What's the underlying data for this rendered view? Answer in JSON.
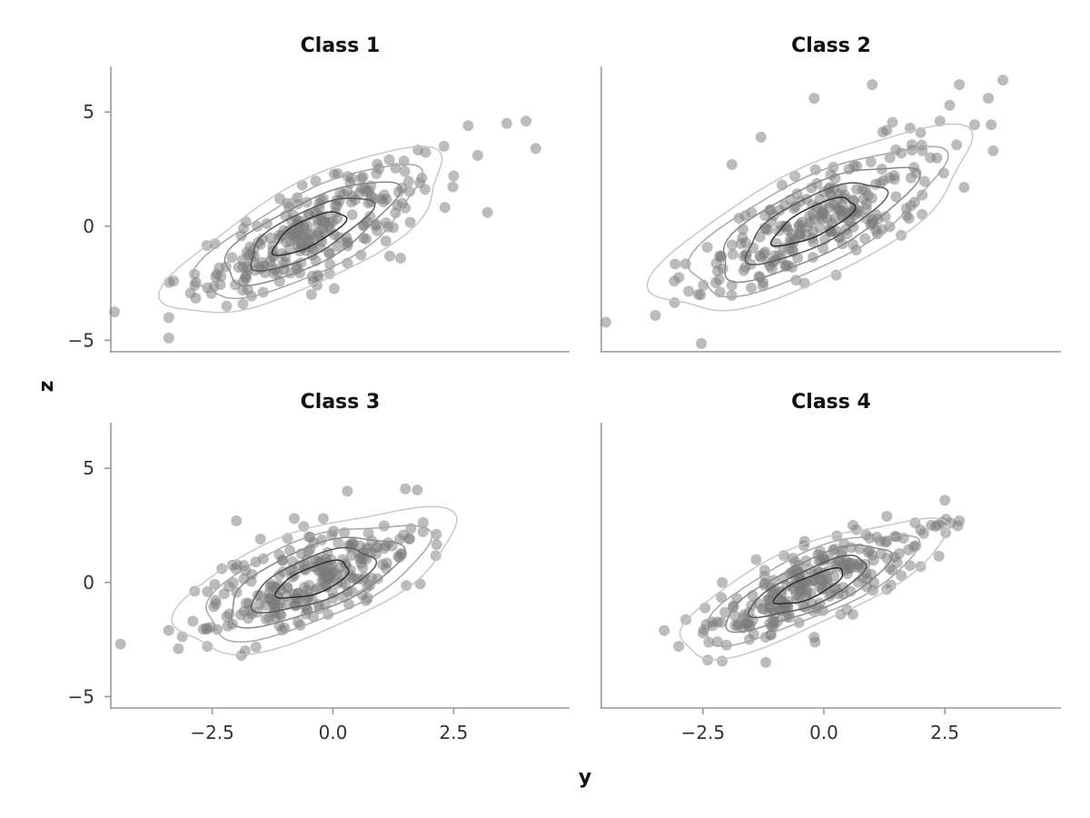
{
  "chart_data": {
    "type": "scatter",
    "xlabel": "y",
    "ylabel": "z",
    "xlim": [
      -4.6,
      4.9
    ],
    "ylim": [
      -5.5,
      7
    ],
    "x_ticks": [
      -2.5,
      0.0,
      2.5
    ],
    "x_tick_labels": [
      "−2.5",
      "0.0",
      "2.5"
    ],
    "y_ticks": [
      -5,
      0,
      5
    ],
    "y_tick_labels": [
      "−5",
      "0",
      "5"
    ],
    "grid": false,
    "legend": "none",
    "overlay": "2D density contours",
    "point_color": "#7a7a7a",
    "contour_colors": [
      "#c8c8c8",
      "#a8a8a8",
      "#888888",
      "#5a5a5a",
      "#2e2e2e"
    ],
    "panels": [
      {
        "title": "Class 1",
        "center": [
          -0.5,
          -0.3
        ],
        "sx": 1.15,
        "sy": 1.45,
        "rho": 0.75,
        "points": [
          [
            -2.6,
            -2.7
          ],
          [
            -2.4,
            -2.1
          ],
          [
            -1.8,
            -2.3
          ],
          [
            -1.2,
            -1.9
          ],
          [
            -0.9,
            -1.0
          ],
          [
            -0.5,
            -0.7
          ],
          [
            0.0,
            0.2
          ],
          [
            0.4,
            0.5
          ],
          [
            1.0,
            1.2
          ],
          [
            1.8,
            1.9
          ],
          [
            2.5,
            2.2
          ],
          [
            3.0,
            3.1
          ],
          [
            3.6,
            4.5
          ],
          [
            4.0,
            4.6
          ],
          [
            4.2,
            3.4
          ],
          [
            -3.4,
            -4.0
          ],
          [
            -3.4,
            -4.9
          ],
          [
            -3.3,
            -2.4
          ],
          [
            -2.2,
            -3.5
          ],
          [
            -1.5,
            -0.8
          ],
          [
            -0.3,
            -2.2
          ],
          [
            0.7,
            0.2
          ],
          [
            1.4,
            -1.4
          ],
          [
            2.3,
            3.5
          ],
          [
            2.8,
            4.4
          ],
          [
            3.2,
            0.6
          ],
          [
            -1.1,
            1.2
          ],
          [
            0.1,
            2.3
          ],
          [
            0.9,
            2.3
          ],
          [
            1.5,
            0.8
          ]
        ]
      },
      {
        "title": "Class 2",
        "center": [
          -0.2,
          0.2
        ],
        "sx": 1.3,
        "sy": 1.6,
        "rho": 0.75,
        "points": [
          [
            -1.9,
            -2.6
          ],
          [
            -1.5,
            -2.7
          ],
          [
            -1.0,
            -1.5
          ],
          [
            -0.6,
            -0.6
          ],
          [
            -0.2,
            0.3
          ],
          [
            0.3,
            0.8
          ],
          [
            0.8,
            1.6
          ],
          [
            1.2,
            2.5
          ],
          [
            1.6,
            3.2
          ],
          [
            2.0,
            4.1
          ],
          [
            2.4,
            4.6
          ],
          [
            2.8,
            6.2
          ],
          [
            3.4,
            5.6
          ],
          [
            3.7,
            6.4
          ],
          [
            -1.9,
            2.7
          ],
          [
            -1.3,
            3.9
          ],
          [
            -0.2,
            5.6
          ],
          [
            1.0,
            6.2
          ],
          [
            3.5,
            3.3
          ],
          [
            2.9,
            1.7
          ],
          [
            0.6,
            -0.8
          ],
          [
            -0.8,
            0.0
          ],
          [
            1.6,
            -0.4
          ],
          [
            -0.4,
            -2.5
          ],
          [
            2.2,
            3.0
          ],
          [
            0.0,
            1.5
          ],
          [
            1.3,
            4.2
          ],
          [
            2.6,
            5.3
          ],
          [
            -0.6,
            2.2
          ],
          [
            1.8,
            0.9
          ]
        ]
      },
      {
        "title": "Class 3",
        "center": [
          -0.4,
          0.1
        ],
        "sx": 1.15,
        "sy": 1.25,
        "rho": 0.65,
        "points": [
          [
            -4.4,
            -2.7
          ],
          [
            -3.4,
            -2.1
          ],
          [
            -3.2,
            -2.9
          ],
          [
            -2.6,
            -2.8
          ],
          [
            -2.2,
            -1.5
          ],
          [
            -1.8,
            -0.9
          ],
          [
            -1.3,
            -0.2
          ],
          [
            -0.8,
            0.3
          ],
          [
            -0.3,
            0.5
          ],
          [
            0.2,
            1.0
          ],
          [
            0.7,
            1.5
          ],
          [
            1.5,
            4.1
          ],
          [
            0.3,
            4.0
          ],
          [
            -0.8,
            2.8
          ],
          [
            -1.5,
            1.9
          ],
          [
            -2.3,
            0.6
          ],
          [
            -1.9,
            -3.2
          ],
          [
            -1.0,
            -2.0
          ],
          [
            -0.1,
            -1.4
          ],
          [
            0.4,
            -0.4
          ],
          [
            -2.6,
            -0.4
          ],
          [
            -1.4,
            -1.0
          ],
          [
            -0.5,
            2.0
          ],
          [
            0.8,
            0.2
          ],
          [
            -1.6,
            0.9
          ],
          [
            -0.2,
            2.8
          ],
          [
            -2.9,
            -1.7
          ],
          [
            -1.1,
            -1.4
          ],
          [
            0.0,
            -0.7
          ],
          [
            -2.0,
            2.7
          ]
        ]
      },
      {
        "title": "Class 4",
        "center": [
          -0.3,
          -0.2
        ],
        "sx": 1.1,
        "sy": 1.2,
        "rho": 0.78,
        "points": [
          [
            -3.3,
            -2.1
          ],
          [
            -3.0,
            -2.8
          ],
          [
            -2.4,
            -3.4
          ],
          [
            -2.2,
            -2.6
          ],
          [
            -1.6,
            -1.8
          ],
          [
            -1.2,
            -3.5
          ],
          [
            -0.9,
            -1.2
          ],
          [
            -0.5,
            -0.6
          ],
          [
            0.0,
            0.1
          ],
          [
            0.5,
            0.6
          ],
          [
            1.0,
            1.2
          ],
          [
            1.5,
            2.0
          ],
          [
            2.0,
            2.3
          ],
          [
            2.5,
            3.6
          ],
          [
            2.8,
            2.7
          ],
          [
            2.0,
            0.7
          ],
          [
            1.3,
            -0.3
          ],
          [
            0.6,
            -1.4
          ],
          [
            -0.2,
            -2.4
          ],
          [
            -2.1,
            0.0
          ],
          [
            -1.4,
            1.0
          ],
          [
            -0.4,
            1.8
          ],
          [
            0.6,
            2.5
          ],
          [
            1.3,
            2.9
          ],
          [
            1.9,
            1.6
          ],
          [
            -1.8,
            -0.7
          ],
          [
            -0.7,
            0.4
          ],
          [
            0.3,
            -0.5
          ],
          [
            -1.1,
            -2.3
          ],
          [
            1.6,
            0.3
          ]
        ]
      }
    ]
  }
}
